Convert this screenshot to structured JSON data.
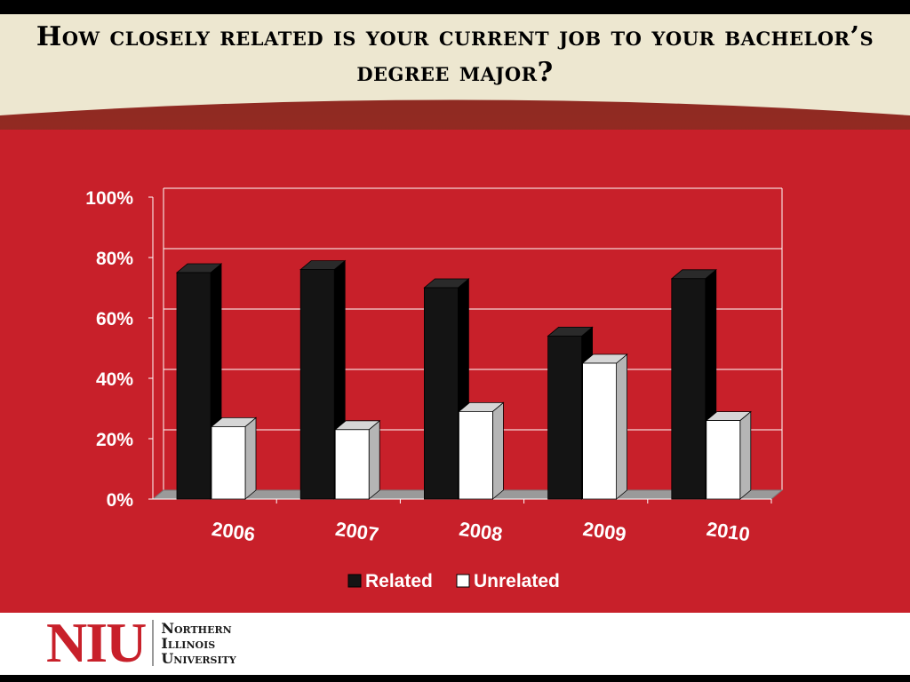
{
  "slide": {
    "title": "How closely related is your current job to your bachelor’s degree major?",
    "logo": {
      "mark": "NIU",
      "name_lines": [
        "Northern",
        "Illinois",
        "University"
      ]
    },
    "colors": {
      "panel_red": "#c8202a",
      "title_band": "#ede7d0",
      "related": "#141414",
      "unrelated": "#ffffff"
    }
  },
  "chart_data": {
    "type": "bar",
    "title": "",
    "xlabel": "",
    "ylabel": "",
    "categories": [
      "2006",
      "2007",
      "2008",
      "2009",
      "2010"
    ],
    "series": [
      {
        "name": "Related",
        "values": [
          75,
          76,
          70,
          54,
          73
        ]
      },
      {
        "name": "Unrelated",
        "values": [
          24,
          23,
          29,
          45,
          26
        ]
      }
    ],
    "ylim": [
      0,
      100
    ],
    "yticks": [
      0,
      20,
      40,
      60,
      80,
      100
    ],
    "ytick_labels": [
      "0%",
      "20%",
      "40%",
      "60%",
      "80%",
      "100%"
    ],
    "grid": true,
    "three_d": true,
    "legend_position": "bottom"
  }
}
